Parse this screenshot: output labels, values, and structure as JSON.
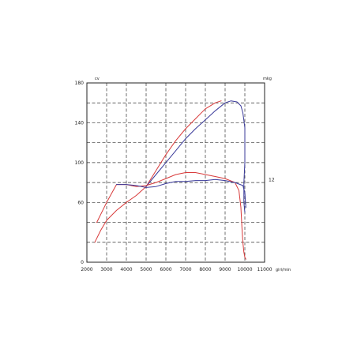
{
  "chart_data": {
    "type": "line",
    "title": "",
    "xlabel": "",
    "ylabel": "",
    "x_unit": "giri/min",
    "y_left_unit": "cv",
    "y_right_unit": "mkg",
    "xlim": [
      2000,
      11000
    ],
    "ylim": [
      0,
      180
    ],
    "x_ticks": [
      "2000",
      "3000",
      "4000",
      "5000",
      "6000",
      "7000",
      "8000",
      "9000",
      "10000",
      "11000"
    ],
    "y_ticks": [
      "0",
      "60",
      "100",
      "140",
      "180"
    ],
    "y_tick_values": [
      0,
      60,
      100,
      140,
      180
    ],
    "right_ticks": [
      {
        "label": "12",
        "value": 83
      }
    ],
    "x_tick_units": [
      "",
      "",
      "",
      "",
      "",
      "",
      "",
      "",
      "",
      "giri/min"
    ],
    "grid": true,
    "legend": "none",
    "series": [
      {
        "role": "power",
        "color": "#d83a3a",
        "x": [
          2400,
          2700,
          3000,
          3500,
          4000,
          4500,
          5000,
          5500,
          6000,
          6500,
          7000,
          7500,
          8000,
          8500,
          8800
        ],
        "y": [
          20,
          32,
          42,
          52,
          60,
          67,
          76,
          92,
          108,
          122,
          134,
          144,
          154,
          160,
          162
        ]
      },
      {
        "role": "power",
        "color": "#3a3a9a",
        "x": [
          5000,
          5500,
          6000,
          6500,
          7000,
          7500,
          8000,
          8500,
          9000,
          9300,
          9600,
          9800,
          9900,
          10000,
          10000,
          9950,
          9950,
          10000
        ],
        "y": [
          76,
          88,
          100,
          112,
          124,
          134,
          143,
          152,
          160,
          162,
          161,
          157,
          150,
          135,
          100,
          80,
          60,
          50
        ]
      },
      {
        "role": "torque",
        "color": "#d83a3a",
        "x": [
          2500,
          3000,
          3500,
          4000,
          4500,
          5000,
          5500,
          6000,
          6500,
          7000,
          7500,
          8000,
          8500,
          9000,
          9500,
          9700,
          9800,
          9850,
          9900,
          9950,
          10000,
          10050
        ],
        "y": [
          40,
          60,
          78,
          78,
          76,
          77,
          80,
          84,
          88,
          90,
          90,
          88,
          86,
          84,
          80,
          72,
          55,
          35,
          20,
          10,
          5,
          3
        ]
      },
      {
        "role": "torque",
        "color": "#3a3a9a",
        "x": [
          3500,
          4000,
          4500,
          5000,
          5500,
          6000,
          6500,
          7000,
          7500,
          8000,
          8500,
          9000,
          9500,
          9900,
          10000,
          10050
        ],
        "y": [
          78,
          78,
          77,
          75,
          76,
          79,
          81,
          81,
          82,
          82,
          83,
          82,
          80,
          77,
          70,
          55
        ]
      }
    ]
  }
}
